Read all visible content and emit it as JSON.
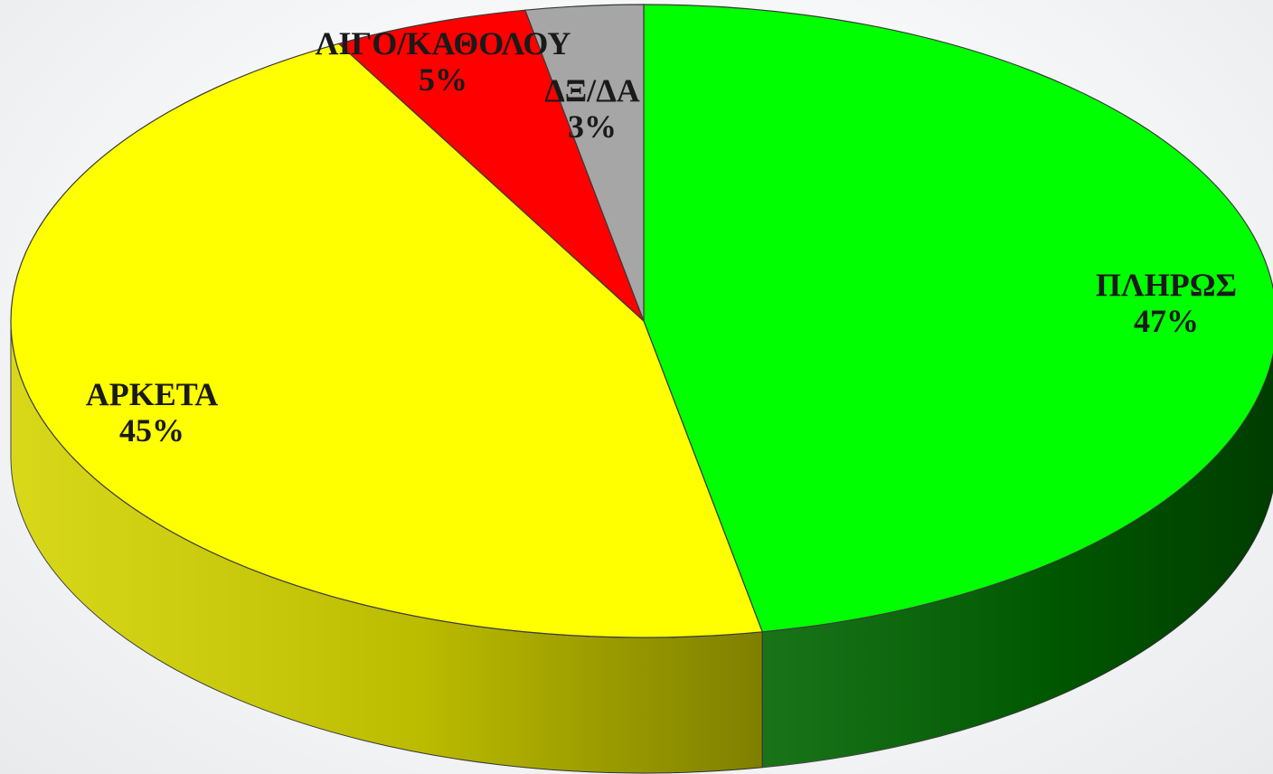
{
  "chart_data": {
    "type": "pie",
    "title": "",
    "three_d": true,
    "legend": "none",
    "slices": [
      {
        "label": "ΠΛΗΡΩΣ",
        "value": 47,
        "display": "47%",
        "color": "#00ff00",
        "side_color": "#006400"
      },
      {
        "label": "ΑΡΚΕΤΑ",
        "value": 45,
        "display": "45%",
        "color": "#ffff00",
        "side_color": "#d4d400"
      },
      {
        "label": "ΛΙΓΟ/ΚΑΘΟΛΟΥ",
        "value": 5,
        "display": "5%",
        "color": "#ff0000",
        "side_color": "#990000"
      },
      {
        "label": "ΔΞ/ΔΑ",
        "value": 3,
        "display": "3%",
        "color": "#a6a6a6",
        "side_color": "#6e6e6e"
      }
    ]
  }
}
